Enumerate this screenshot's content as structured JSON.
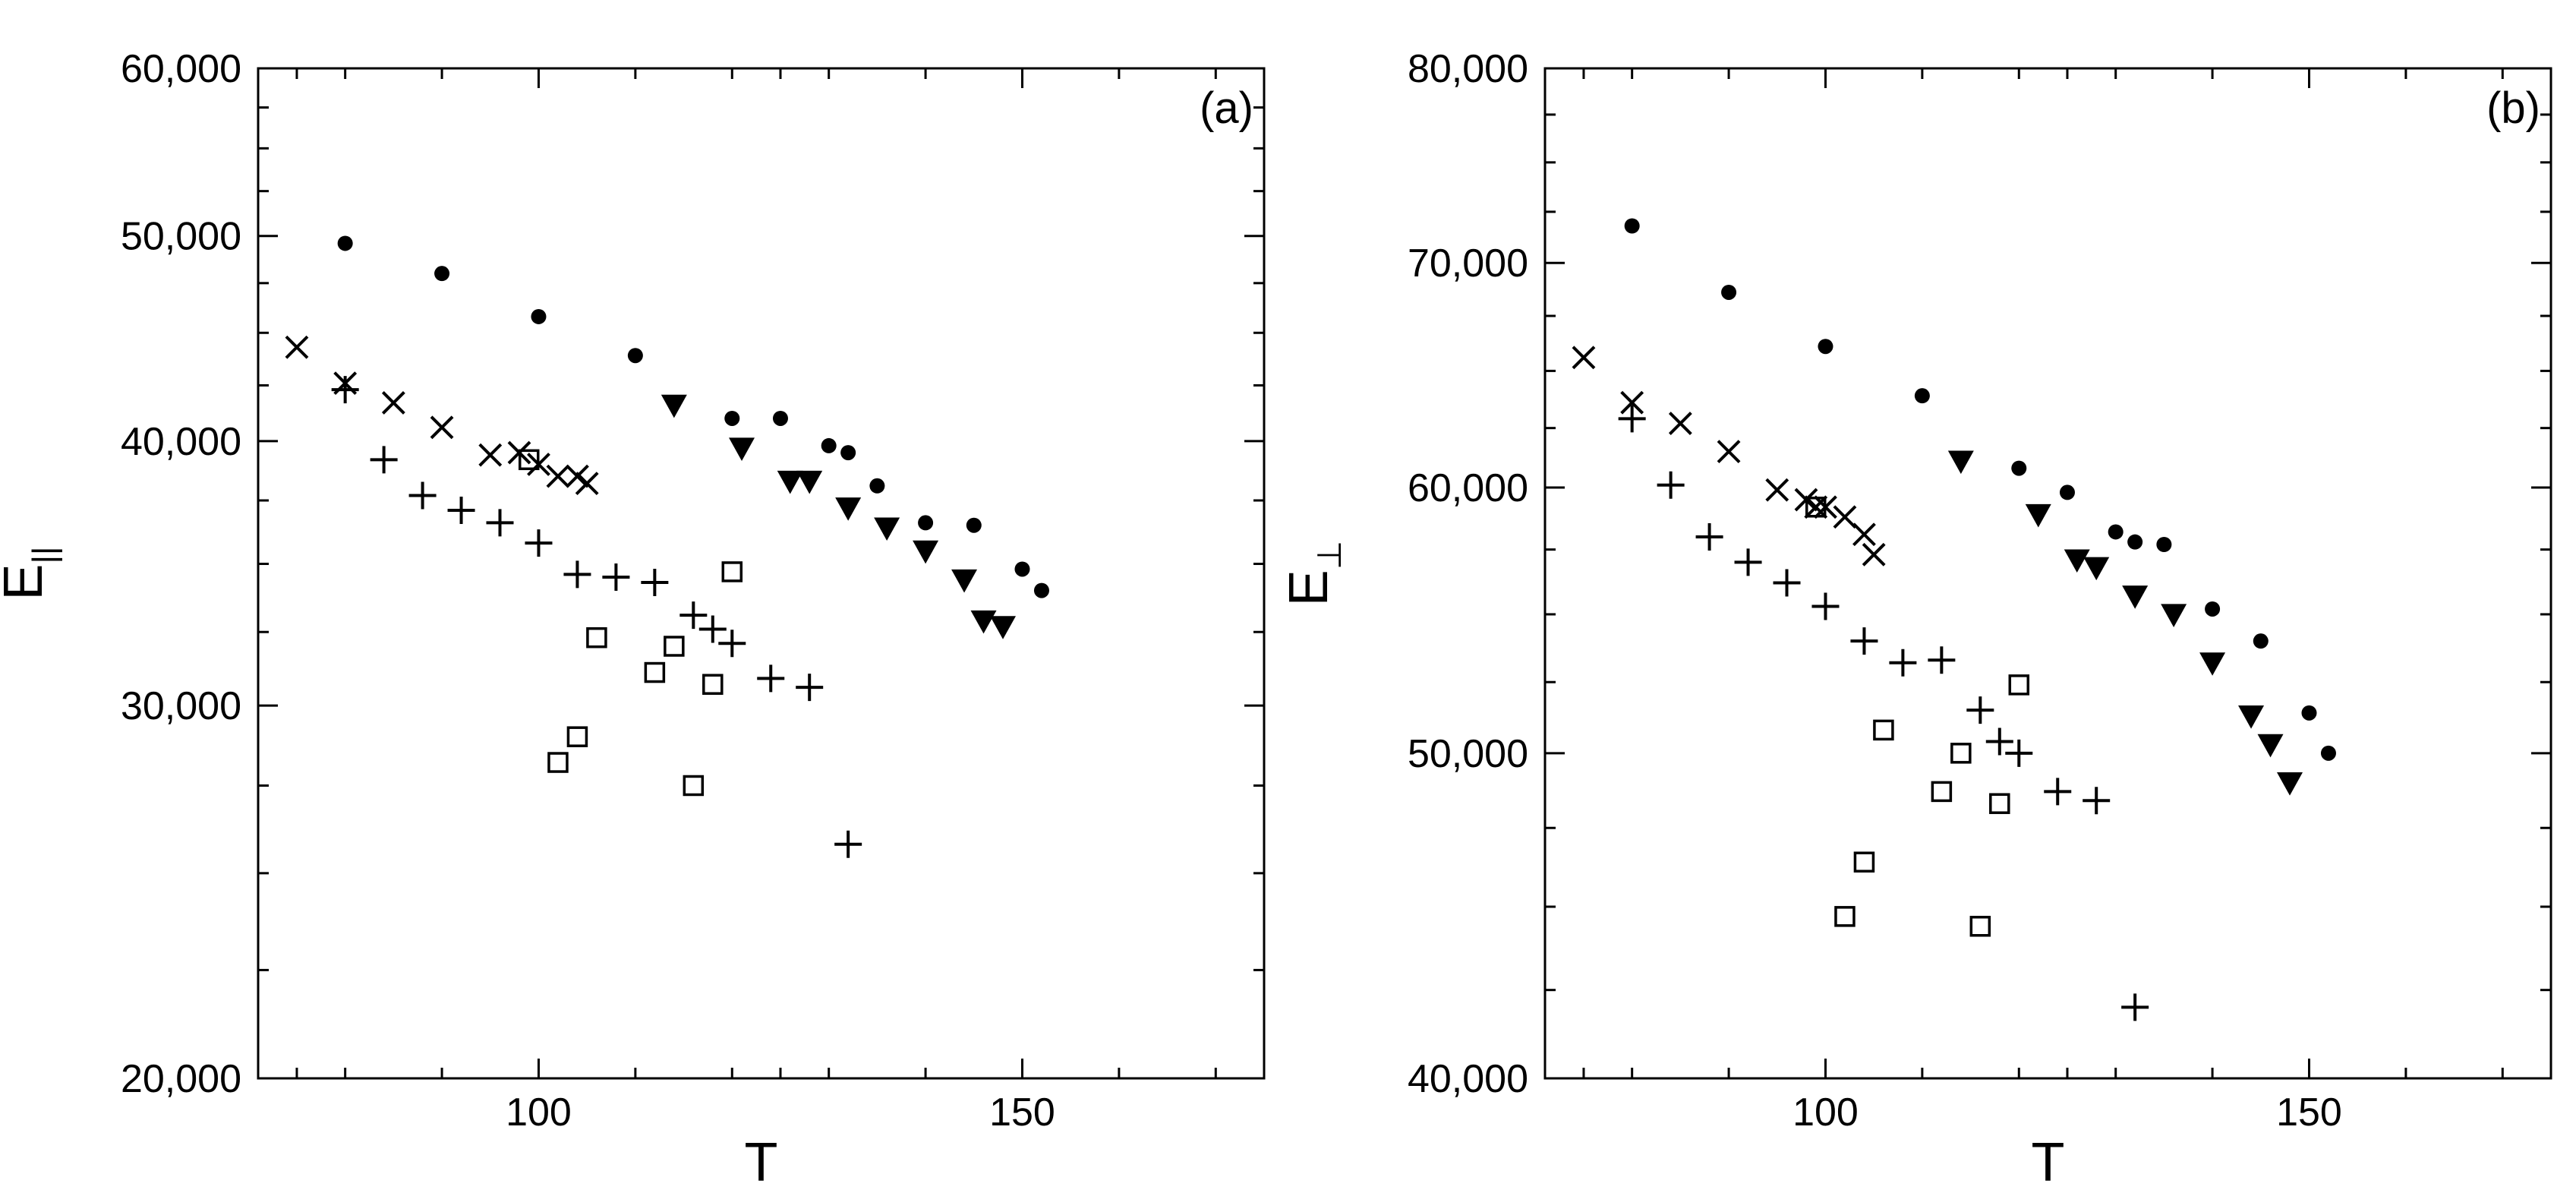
{
  "chart_data": [
    {
      "type": "scatter",
      "panel_label": "(a)",
      "xlabel": "T",
      "ylabel_main": "E",
      "ylabel_sub": "||",
      "xlim": [
        71,
        175
      ],
      "ylim": [
        20000,
        60000
      ],
      "yscale": "log",
      "x_ticks": [
        100,
        150
      ],
      "x_minor_ticks": [
        75,
        80,
        90,
        110,
        120,
        125,
        130,
        140,
        160,
        170,
        175
      ],
      "x_tick_labels": [
        "100",
        "150"
      ],
      "y_ticks": [
        20000,
        30000,
        40000,
        50000,
        60000
      ],
      "y_tick_labels": [
        "20,000",
        "30,000",
        "40,000",
        "50,000",
        "60,000"
      ],
      "y_minor_ticks": [
        22500,
        25000,
        27500,
        32500,
        35000,
        37500,
        42500,
        45000,
        47500,
        52500,
        55000,
        57500
      ],
      "grid": false,
      "series": [
        {
          "marker": "circle",
          "x": [
            80,
            90,
            100,
            110,
            120,
            125,
            130,
            132,
            135,
            140,
            145,
            150,
            152
          ],
          "y": [
            49600,
            48000,
            45800,
            43900,
            41000,
            41000,
            39800,
            39500,
            38100,
            36600,
            36500,
            34800,
            34000
          ]
        },
        {
          "marker": "triangle-down",
          "x": [
            114,
            121,
            126,
            128,
            132,
            136,
            140,
            144,
            146,
            148
          ],
          "y": [
            41600,
            39700,
            38300,
            38300,
            37200,
            36400,
            35500,
            34400,
            32900,
            32700
          ]
        },
        {
          "marker": "x",
          "x": [
            75,
            80,
            85,
            90,
            95,
            98,
            100,
            102,
            104,
            105
          ],
          "y": [
            44300,
            42600,
            41700,
            40600,
            39400,
            39500,
            39000,
            38500,
            38500,
            38200
          ]
        },
        {
          "marker": "plus",
          "x": [
            80,
            84,
            88,
            92,
            96,
            100,
            104,
            108,
            112,
            116,
            118,
            120,
            124,
            128,
            132
          ],
          "y": [
            42300,
            39200,
            37700,
            37100,
            36600,
            35800,
            34600,
            34500,
            34300,
            33100,
            32600,
            32100,
            30900,
            30600,
            25800
          ]
        },
        {
          "marker": "square",
          "x": [
            99,
            102,
            104,
            106,
            112,
            114,
            116,
            118,
            120
          ],
          "y": [
            39200,
            28200,
            29000,
            32300,
            31100,
            32000,
            27500,
            30700,
            34700
          ]
        }
      ]
    },
    {
      "type": "scatter",
      "panel_label": "(b)",
      "xlabel": "T",
      "ylabel_main": "E",
      "ylabel_sub": "⊥",
      "xlim": [
        71,
        175
      ],
      "ylim": [
        40000,
        80000
      ],
      "yscale": "log",
      "x_ticks": [
        100,
        150
      ],
      "x_minor_ticks": [
        75,
        80,
        90,
        110,
        120,
        125,
        130,
        140,
        160,
        170,
        175
      ],
      "x_tick_labels": [
        "100",
        "150"
      ],
      "y_ticks": [
        40000,
        50000,
        60000,
        70000,
        80000
      ],
      "y_tick_labels": [
        "40,000",
        "50,000",
        "60,000",
        "70,000",
        "80,000"
      ],
      "y_minor_ticks": [
        42500,
        45000,
        47500,
        52500,
        55000,
        57500,
        62500,
        65000,
        67500,
        72500,
        75000,
        77500
      ],
      "grid": false,
      "series": [
        {
          "marker": "circle",
          "x": [
            80,
            90,
            100,
            110,
            120,
            125,
            130,
            132,
            135,
            140,
            145,
            150,
            152
          ],
          "y": [
            71800,
            68600,
            66100,
            63900,
            60800,
            59800,
            58200,
            57800,
            57700,
            55200,
            54000,
            51400,
            50000
          ]
        },
        {
          "marker": "triangle-down",
          "x": [
            114,
            122,
            126,
            128,
            132,
            136,
            140,
            144,
            146,
            148
          ],
          "y": [
            61100,
            58900,
            57100,
            56800,
            55700,
            55000,
            53200,
            51300,
            50300,
            49000
          ]
        },
        {
          "marker": "x",
          "x": [
            75,
            80,
            85,
            90,
            95,
            98,
            99,
            100,
            102,
            104,
            105
          ],
          "y": [
            65600,
            63600,
            62700,
            61500,
            59900,
            59500,
            59200,
            59200,
            58800,
            58100,
            57300
          ]
        },
        {
          "marker": "plus",
          "x": [
            80,
            84,
            88,
            92,
            96,
            100,
            104,
            108,
            112,
            116,
            118,
            120,
            124,
            128,
            132
          ],
          "y": [
            62900,
            60100,
            58000,
            57000,
            56200,
            55300,
            54000,
            53200,
            53300,
            51500,
            50400,
            50000,
            48700,
            48400,
            42000
          ]
        },
        {
          "marker": "square",
          "x": [
            99,
            102,
            104,
            106,
            112,
            114,
            116,
            118,
            120
          ],
          "y": [
            59200,
            44700,
            46400,
            50800,
            48700,
            50000,
            44400,
            48300,
            52400
          ]
        }
      ]
    }
  ]
}
